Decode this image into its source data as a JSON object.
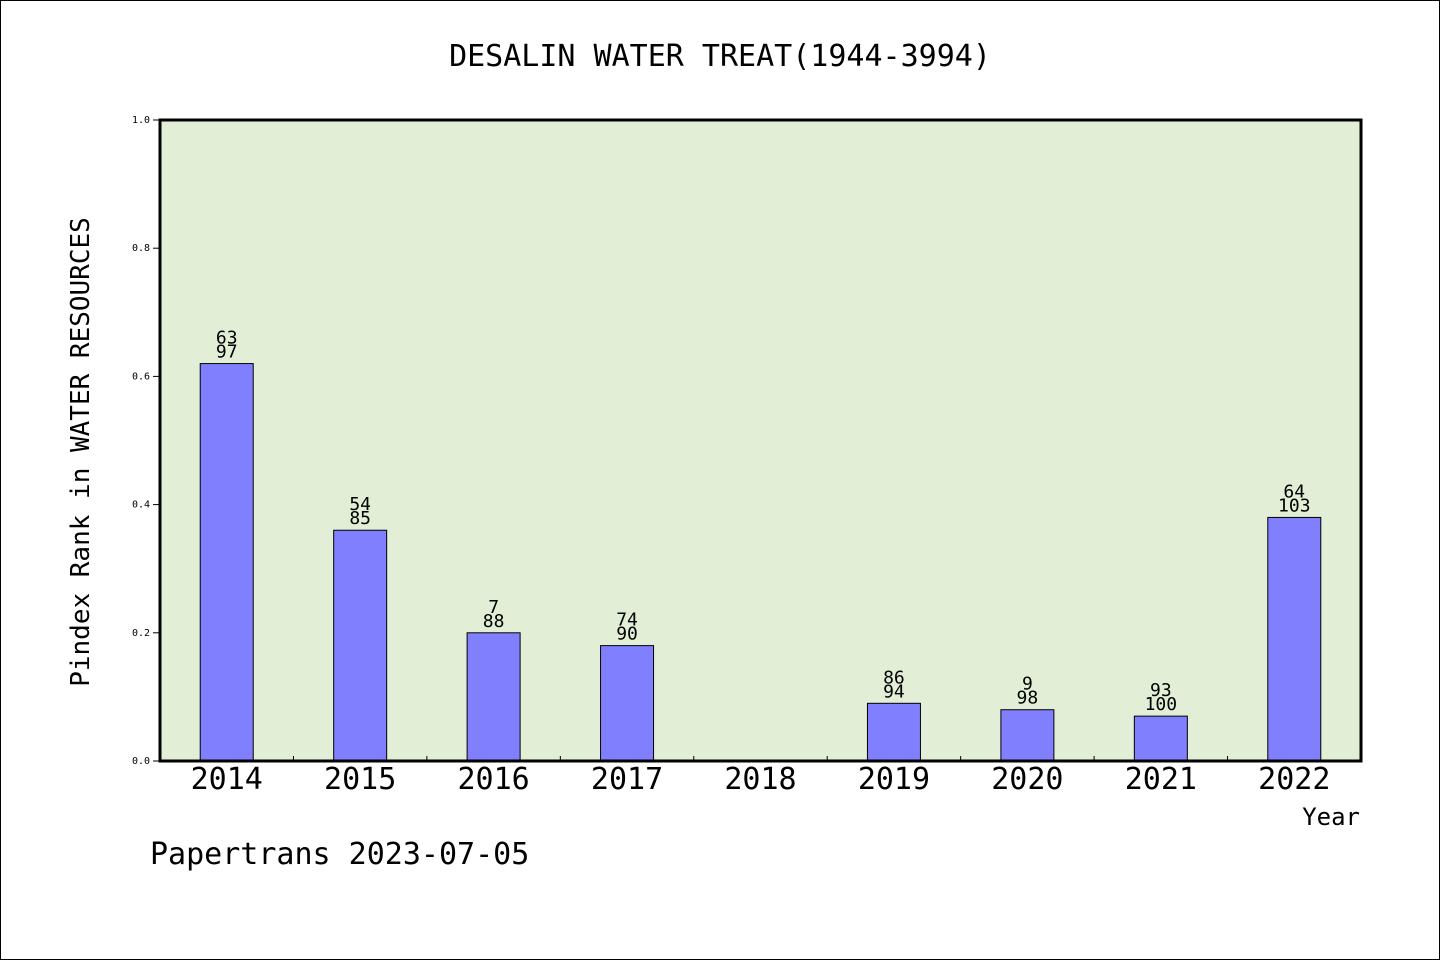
{
  "chart_data": {
    "type": "bar",
    "title": "DESALIN WATER TREAT(1944-3994)",
    "xlabel": "Year",
    "ylabel": "Pindex Rank in WATER RESOURCES",
    "ylim": [
      0,
      1.0
    ],
    "yticks": [
      "0.0",
      "0.2",
      "0.4",
      "0.6",
      "0.8",
      "1.0"
    ],
    "ytick_values": [
      0,
      0.2,
      0.4,
      0.6,
      0.8,
      1.0
    ],
    "categories": [
      "2014",
      "2015",
      "2016",
      "2017",
      "2018",
      "2019",
      "2020",
      "2021",
      "2022"
    ],
    "values": [
      0.62,
      0.36,
      0.2,
      0.18,
      null,
      0.09,
      0.08,
      0.07,
      0.38
    ],
    "labels_top": [
      "63",
      "54",
      "7",
      "74",
      "",
      "86",
      "9",
      "93",
      "64"
    ],
    "labels_bottom": [
      "97",
      "85",
      "88",
      "90",
      "",
      "94",
      "98",
      "100",
      "103"
    ],
    "grid": false,
    "legend": "none",
    "colors": {
      "plot_background": "#e2efd6",
      "bar_fill": "#8080ff",
      "bar_edge": "#000000"
    }
  },
  "footer": "Papertrans 2023-07-05"
}
